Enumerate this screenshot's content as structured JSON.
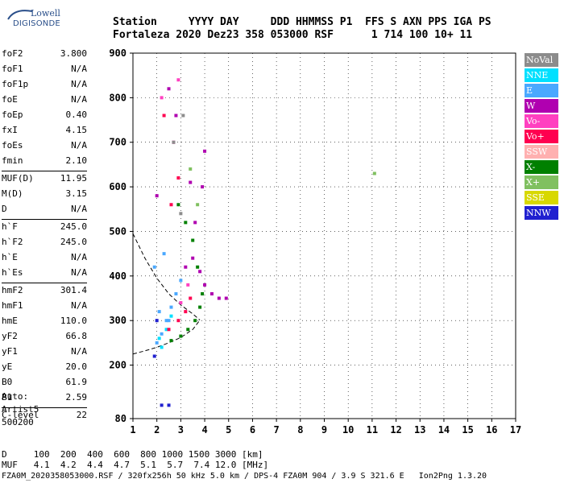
{
  "logo": {
    "line1": "Lowell",
    "line2": "DIGISONDE"
  },
  "header": {
    "labels_row": "Station     YYYY DAY     DDD HHMMSS P1  FFS S AXN PPS IGA PS",
    "values_row": "Fortaleza 2020 Dez23 358 053000 RSF      1 714 100 10+ 11"
  },
  "params": [
    {
      "group": 1,
      "key": "foF2",
      "value": "3.800"
    },
    {
      "group": 1,
      "key": "foF1",
      "value": "N/A"
    },
    {
      "group": 1,
      "key": "foF1p",
      "value": "N/A"
    },
    {
      "group": 1,
      "key": "foE",
      "value": "N/A"
    },
    {
      "group": 1,
      "key": "foEp",
      "value": "0.40"
    },
    {
      "group": 1,
      "key": "fxI",
      "value": "4.15"
    },
    {
      "group": 1,
      "key": "foEs",
      "value": "N/A"
    },
    {
      "group": 1,
      "key": "fmin",
      "value": "2.10"
    },
    {
      "group": 2,
      "key": "MUF(D)",
      "value": "11.95"
    },
    {
      "group": 2,
      "key": "M(D)",
      "value": "3.15"
    },
    {
      "group": 2,
      "key": "D",
      "value": "N/A"
    },
    {
      "group": 3,
      "key": "h`F",
      "value": "245.0"
    },
    {
      "group": 3,
      "key": "h`F2",
      "value": "245.0"
    },
    {
      "group": 3,
      "key": "h`E",
      "value": "N/A"
    },
    {
      "group": 3,
      "key": "h`Es",
      "value": "N/A"
    },
    {
      "group": 4,
      "key": "hmF2",
      "value": "301.4"
    },
    {
      "group": 4,
      "key": "hmF1",
      "value": "N/A"
    },
    {
      "group": 4,
      "key": "hmE",
      "value": "110.0"
    },
    {
      "group": 4,
      "key": "yF2",
      "value": "66.8"
    },
    {
      "group": 4,
      "key": "yF1",
      "value": "N/A"
    },
    {
      "group": 4,
      "key": "yE",
      "value": "20.0"
    },
    {
      "group": 4,
      "key": "B0",
      "value": "61.9"
    },
    {
      "group": 4,
      "key": "B1",
      "value": "2.59"
    },
    {
      "group": 5,
      "key": "C-level",
      "value": "22"
    }
  ],
  "auto": {
    "line1": "Auto:",
    "line2": "Artist5",
    "line3": "500200"
  },
  "legend": [
    {
      "label": "NoVal",
      "color": "#8c8c8c"
    },
    {
      "label": "NNE",
      "color": "#00e0ff"
    },
    {
      "label": "E",
      "color": "#4aa8ff"
    },
    {
      "label": "W",
      "color": "#b000b0"
    },
    {
      "label": "Vo-",
      "color": "#ff40c0"
    },
    {
      "label": "Vo+",
      "color": "#ff0050"
    },
    {
      "label": "SSW",
      "color": "#ffb0b0"
    },
    {
      "label": "X-",
      "color": "#008000"
    },
    {
      "label": "X+",
      "color": "#80c060"
    },
    {
      "label": "SSE",
      "color": "#d8d800"
    },
    {
      "label": "NNW",
      "color": "#2020d0"
    }
  ],
  "bottom": {
    "d_row": "D     100  200  400  600  800 1000 1500 3000 [km]",
    "muf_row": "MUF   4.1  4.2  4.4  4.7  5.1  5.7  7.4 12.0 [MHz]",
    "footer": "FZA0M_2020358053000.RSF / 320fx256h 50 kHz 5.0 km / DPS-4 FZA0M 904 / 3.9 S 321.6 E   Ion2Png 1.3.20"
  },
  "chart_data": {
    "type": "scatter",
    "xlim": [
      1,
      17
    ],
    "ylim": [
      80,
      900
    ],
    "xticks": [
      1,
      2,
      3,
      4,
      5,
      6,
      7,
      8,
      9,
      10,
      11,
      12,
      13,
      14,
      15,
      16,
      17
    ],
    "yticks": [
      80,
      200,
      300,
      400,
      500,
      600,
      700,
      800,
      900
    ],
    "grid": true,
    "series": [
      {
        "name": "X-",
        "color": "#008000",
        "points": [
          [
            2.6,
            255
          ],
          [
            3.0,
            265
          ],
          [
            3.3,
            280
          ],
          [
            3.6,
            300
          ],
          [
            3.8,
            330
          ],
          [
            3.9,
            360
          ],
          [
            3.7,
            420
          ],
          [
            3.5,
            480
          ],
          [
            3.2,
            520
          ],
          [
            2.9,
            560
          ]
        ]
      },
      {
        "name": "E",
        "color": "#4aa8ff",
        "points": [
          [
            2.0,
            250
          ],
          [
            2.2,
            270
          ],
          [
            2.4,
            300
          ],
          [
            2.6,
            330
          ],
          [
            2.8,
            360
          ],
          [
            3.0,
            390
          ],
          [
            2.3,
            450
          ],
          [
            2.5,
            300
          ],
          [
            2.1,
            320
          ],
          [
            1.9,
            420
          ]
        ]
      },
      {
        "name": "NNE",
        "color": "#00e0ff",
        "points": [
          [
            2.1,
            260
          ],
          [
            2.4,
            280
          ],
          [
            2.6,
            310
          ],
          [
            2.2,
            240
          ]
        ]
      },
      {
        "name": "W",
        "color": "#b000b0",
        "points": [
          [
            3.2,
            420
          ],
          [
            3.5,
            440
          ],
          [
            3.8,
            410
          ],
          [
            4.0,
            380
          ],
          [
            4.3,
            360
          ],
          [
            4.6,
            350
          ],
          [
            4.9,
            350
          ],
          [
            3.6,
            520
          ],
          [
            3.9,
            600
          ],
          [
            4.0,
            680
          ],
          [
            3.4,
            610
          ],
          [
            2.8,
            760
          ],
          [
            2.5,
            820
          ],
          [
            2.0,
            580
          ]
        ]
      },
      {
        "name": "Vo+",
        "color": "#ff0050",
        "points": [
          [
            2.5,
            280
          ],
          [
            2.9,
            300
          ],
          [
            3.2,
            320
          ],
          [
            3.4,
            350
          ],
          [
            2.6,
            560
          ],
          [
            2.9,
            620
          ],
          [
            2.3,
            760
          ]
        ]
      },
      {
        "name": "Vo-",
        "color": "#ff40c0",
        "points": [
          [
            3.0,
            340
          ],
          [
            3.3,
            380
          ],
          [
            2.7,
            700
          ],
          [
            2.9,
            840
          ],
          [
            2.2,
            800
          ]
        ]
      },
      {
        "name": "X+",
        "color": "#80c060",
        "points": [
          [
            3.7,
            560
          ],
          [
            3.4,
            640
          ],
          [
            11.1,
            630
          ]
        ]
      },
      {
        "name": "NNW",
        "color": "#2020d0",
        "points": [
          [
            2.0,
            300
          ],
          [
            1.9,
            220
          ],
          [
            2.2,
            110
          ],
          [
            2.5,
            110
          ]
        ]
      },
      {
        "name": "NoVal",
        "color": "#8c8c8c",
        "points": [
          [
            2.7,
            700
          ],
          [
            3.1,
            760
          ],
          [
            3.0,
            540
          ]
        ]
      }
    ],
    "traces": [
      {
        "name": "profile",
        "style": "dashed",
        "points": [
          [
            1.0,
            495
          ],
          [
            1.5,
            440
          ],
          [
            2.0,
            395
          ],
          [
            2.5,
            360
          ],
          [
            3.0,
            335
          ],
          [
            3.5,
            315
          ],
          [
            3.8,
            301
          ]
        ]
      },
      {
        "name": "trace-low",
        "style": "dashed",
        "points": [
          [
            1.0,
            225
          ],
          [
            1.5,
            232
          ],
          [
            2.0,
            240
          ],
          [
            2.5,
            250
          ],
          [
            3.0,
            262
          ],
          [
            3.5,
            280
          ],
          [
            3.8,
            301
          ]
        ]
      }
    ]
  }
}
